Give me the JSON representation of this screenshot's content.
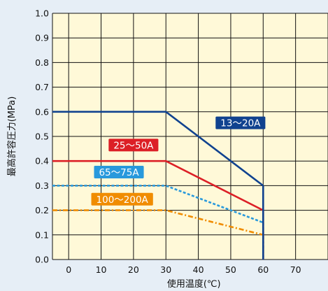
{
  "chart_data": {
    "type": "line",
    "xlabel": "使用温度(℃)",
    "ylabel": "最高許容圧力(MPa)",
    "xlim": [
      -5,
      80
    ],
    "ylim": [
      0,
      1.0
    ],
    "x_ticks": [
      0,
      10,
      20,
      30,
      40,
      50,
      60,
      70
    ],
    "y_ticks": [
      "0.0",
      "0.1",
      "0.2",
      "0.3",
      "0.4",
      "0.5",
      "0.6",
      "0.7",
      "0.8",
      "0.9",
      "1.0"
    ],
    "grid": true,
    "plot_background": "#fff9d8",
    "series": [
      {
        "name": "13〜20A",
        "color": "#10428f",
        "line_style": "solid",
        "points": [
          [
            -5,
            0.6
          ],
          [
            30,
            0.6
          ],
          [
            60,
            0.3
          ]
        ],
        "drop": [
          [
            60,
            0.3
          ],
          [
            60,
            0.0
          ]
        ],
        "label_at": [
          53,
          0.555
        ]
      },
      {
        "name": "25〜50A",
        "color": "#dc1f26",
        "line_style": "solid",
        "points": [
          [
            -5,
            0.4
          ],
          [
            30,
            0.4
          ],
          [
            60,
            0.2
          ]
        ],
        "drop": [
          [
            60,
            0.2
          ],
          [
            60,
            0.0
          ]
        ],
        "label_at": [
          20,
          0.465
        ]
      },
      {
        "name": "65〜75A",
        "color": "#2899dc",
        "line_style": "dashed",
        "points": [
          [
            -5,
            0.3
          ],
          [
            30,
            0.3
          ],
          [
            60,
            0.15
          ]
        ],
        "drop": [
          [
            60,
            0.15
          ],
          [
            60,
            0.0
          ]
        ],
        "label_at": [
          15.5,
          0.355
        ]
      },
      {
        "name": "100〜200A",
        "color": "#f08c00",
        "line_style": "dashdot",
        "points": [
          [
            -5,
            0.2
          ],
          [
            30,
            0.2
          ],
          [
            60,
            0.1
          ]
        ],
        "drop": [
          [
            60,
            0.1
          ],
          [
            60,
            0.0
          ]
        ],
        "label_at": [
          16.5,
          0.245
        ]
      }
    ]
  }
}
